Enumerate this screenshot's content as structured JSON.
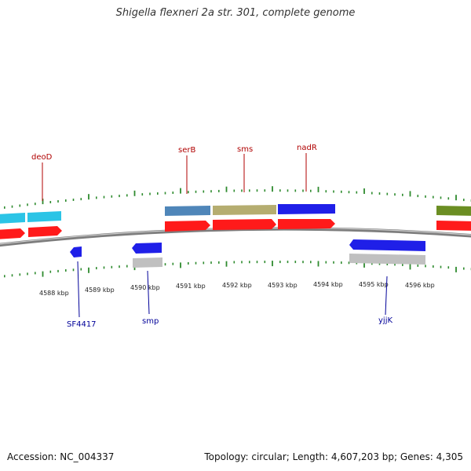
{
  "header": {
    "title": "Shigella flexneri 2a str. 301, complete genome"
  },
  "footer": {
    "accession": "Accession: NC_004337",
    "summary": "Topology: circular; Length: 4,607,203 bp; Genes: 4,305"
  },
  "colors": {
    "backbone": "#808080",
    "tick": "#2e8b2e",
    "cds": "#ff1a1a",
    "forward_label": "#b00000",
    "reverse_label": "#000099"
  },
  "chart_data": {
    "type": "genome-map",
    "axis_labels": [
      "4588 kbp",
      "4589 kbp",
      "4590 kbp",
      "4591 kbp",
      "4592 kbp",
      "4593 kbp",
      "4594 kbp",
      "4595 kbp",
      "4596 kbp"
    ],
    "forward_labels": [
      {
        "name": "deoD",
        "color": "#b00000"
      },
      {
        "name": "serB",
        "color": "#b00000"
      },
      {
        "name": "sms",
        "color": "#b00000"
      },
      {
        "name": "nadR",
        "color": "#b00000"
      }
    ],
    "reverse_labels": [
      {
        "name": "SF4417",
        "color": "#000099"
      },
      {
        "name": "smp",
        "color": "#000099"
      },
      {
        "name": "yjjK",
        "color": "#000099"
      }
    ],
    "features": [
      {
        "strand": "forward",
        "kind": "gene",
        "color": "#2bc4e6"
      },
      {
        "strand": "forward",
        "kind": "gene",
        "color": "#2bc4e6"
      },
      {
        "strand": "forward",
        "kind": "gene",
        "color": "#4f86b9"
      },
      {
        "strand": "forward",
        "kind": "gene",
        "color": "#b5ad70"
      },
      {
        "strand": "forward",
        "kind": "gene",
        "color": "#1f1fe8"
      },
      {
        "strand": "forward",
        "kind": "gene",
        "color": "#6b8e23"
      },
      {
        "strand": "forward",
        "kind": "cds",
        "color": "#ff1a1a"
      },
      {
        "strand": "forward",
        "kind": "cds",
        "color": "#ff1a1a"
      },
      {
        "strand": "forward",
        "kind": "cds",
        "color": "#ff1a1a"
      },
      {
        "strand": "forward",
        "kind": "cds",
        "color": "#ff1a1a"
      },
      {
        "strand": "forward",
        "kind": "cds",
        "color": "#ff1a1a"
      },
      {
        "strand": "forward",
        "kind": "cds",
        "color": "#ff1a1a"
      },
      {
        "strand": "reverse",
        "kind": "gene",
        "color": "#1f1fe8"
      },
      {
        "strand": "reverse",
        "kind": "gene",
        "color": "#1f1fe8"
      },
      {
        "strand": "reverse",
        "kind": "gene",
        "color": "#1f1fe8"
      },
      {
        "strand": "reverse",
        "kind": "cds",
        "color": "#c0c0c0"
      },
      {
        "strand": "reverse",
        "kind": "cds",
        "color": "#c0c0c0"
      }
    ]
  }
}
